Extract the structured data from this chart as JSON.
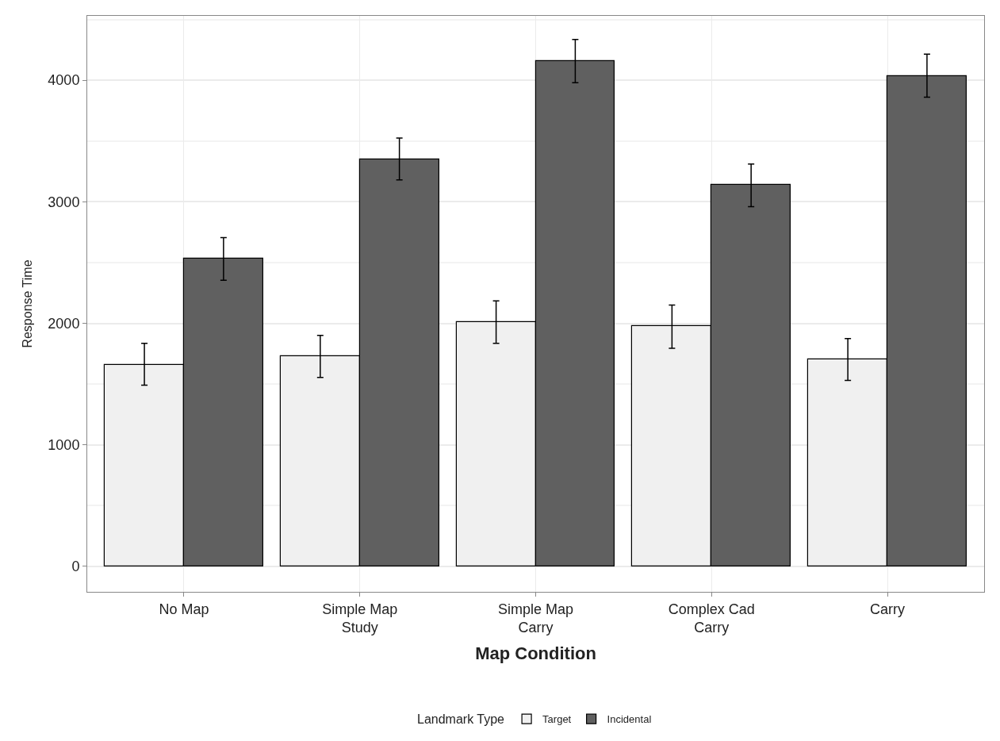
{
  "chart_data": {
    "type": "bar",
    "xlabel": "Map Condition",
    "ylabel": "Response Time",
    "legend_title": "Landmark Type",
    "categories": [
      "No Map",
      "Simple Map\nStudy",
      "Simple Map\nCarry",
      "Complex Cad\nCarry",
      "Carry"
    ],
    "series": [
      {
        "name": "Target",
        "color": "#f0f0f0",
        "values": [
          1660,
          1730,
          2010,
          1980,
          1700
        ],
        "errors": [
          [
            1490,
            1835
          ],
          [
            1555,
            1900
          ],
          [
            1835,
            2185
          ],
          [
            1795,
            2150
          ],
          [
            1530,
            1875
          ]
        ]
      },
      {
        "name": "Incidental",
        "color": "#606060",
        "values": [
          2530,
          3350,
          4155,
          3140,
          4035
        ],
        "errors": [
          [
            2355,
            2705
          ],
          [
            3180,
            3525
          ],
          [
            3980,
            4335
          ],
          [
            2960,
            3310
          ],
          [
            3860,
            4215
          ]
        ]
      }
    ],
    "ylim": [
      -210,
      4530
    ],
    "yticks": [
      0,
      1000,
      2000,
      3000,
      4000
    ],
    "grid": true,
    "legend": "bottom"
  }
}
